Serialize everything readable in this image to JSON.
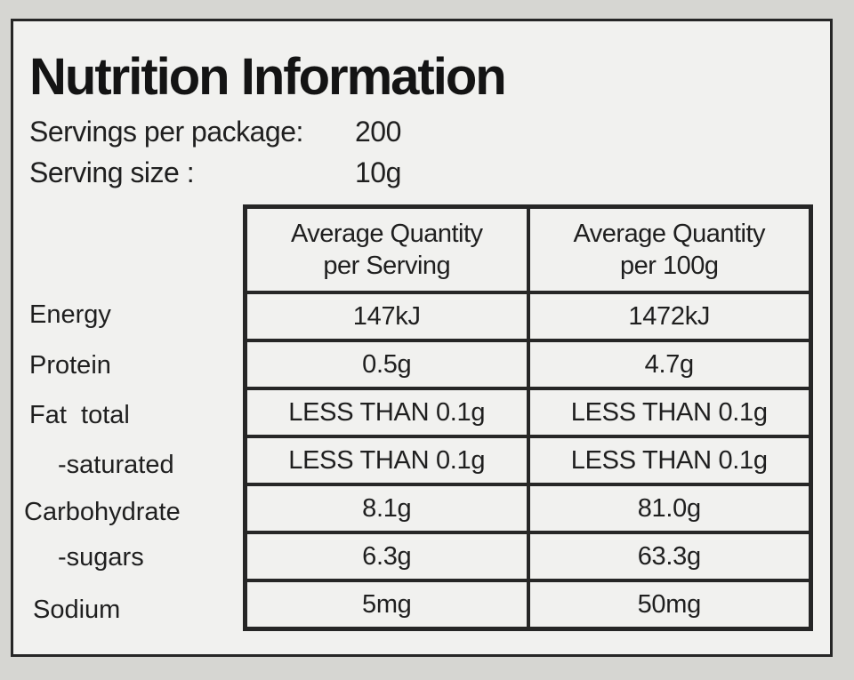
{
  "title": "Nutrition Information",
  "servings_per_package_label": "Servings per package:",
  "servings_per_package_value": "200",
  "serving_size_label": "Serving size :",
  "serving_size_value": "10g",
  "table": {
    "headers": {
      "per_serving_line1": "Average Quantity",
      "per_serving_line2": "per Serving",
      "per_100g_line1": "Average Quantity",
      "per_100g_line2": "per 100g"
    },
    "rows": [
      {
        "label": "Energy",
        "per_serving": "147kJ",
        "per_100g": "1472kJ"
      },
      {
        "label": "Protein",
        "per_serving": "0.5g",
        "per_100g": "4.7g"
      },
      {
        "label": "Fat  total",
        "per_serving": "LESS THAN 0.1g",
        "per_100g": "LESS THAN 0.1g"
      },
      {
        "label": "-saturated",
        "per_serving": "LESS THAN 0.1g",
        "per_100g": "LESS THAN 0.1g"
      },
      {
        "label": "Carbohydrate",
        "per_serving": "8.1g",
        "per_100g": "81.0g"
      },
      {
        "label": "-sugars",
        "per_serving": "6.3g",
        "per_100g": "63.3g"
      },
      {
        "label": "Sodium",
        "per_serving": "5mg",
        "per_100g": "50mg"
      }
    ]
  }
}
